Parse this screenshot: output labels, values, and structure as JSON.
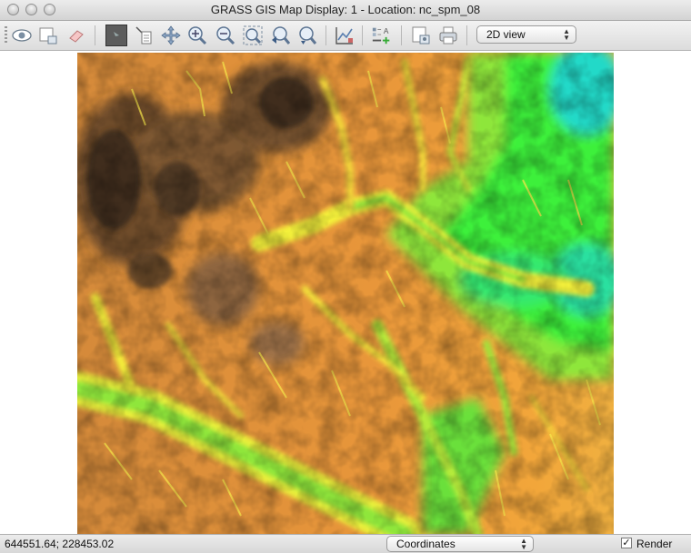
{
  "window": {
    "title": "GRASS GIS Map Display: 1  - Location: nc_spm_08"
  },
  "toolbar": {
    "view_mode": "2D view",
    "tools": [
      {
        "icon": "eye-icon",
        "label": "Display map"
      },
      {
        "icon": "render-icon",
        "label": "Render map"
      },
      {
        "icon": "eraser-icon",
        "label": "Erase display"
      },
      {
        "icon": "pointer-icon",
        "label": "Pointer"
      },
      {
        "icon": "query-icon",
        "label": "Query"
      },
      {
        "icon": "pan-icon",
        "label": "Pan"
      },
      {
        "icon": "zoom-in-icon",
        "label": "Zoom in"
      },
      {
        "icon": "zoom-out-icon",
        "label": "Zoom out"
      },
      {
        "icon": "zoom-extent-icon",
        "label": "Zoom to extent"
      },
      {
        "icon": "zoom-back-icon",
        "label": "Zoom back"
      },
      {
        "icon": "zoom-menu-icon",
        "label": "Zoom options"
      },
      {
        "icon": "analyze-icon",
        "label": "Analyze"
      },
      {
        "icon": "decoration-icon",
        "label": "Decorations"
      },
      {
        "icon": "save-icon",
        "label": "Save display"
      },
      {
        "icon": "print-icon",
        "label": "Print"
      }
    ]
  },
  "map": {
    "content": "elevation raster"
  },
  "statusbar": {
    "coordinates": "644551.64; 228453.02",
    "mode": "Coordinates",
    "render_label": "Render",
    "render_checked": true
  },
  "colors": {
    "low": "#1fe0e0",
    "mid_low": "#2ef22e",
    "mid": "#f5f53a",
    "mid_high": "#f3a030",
    "high": "#3b2a1a"
  }
}
